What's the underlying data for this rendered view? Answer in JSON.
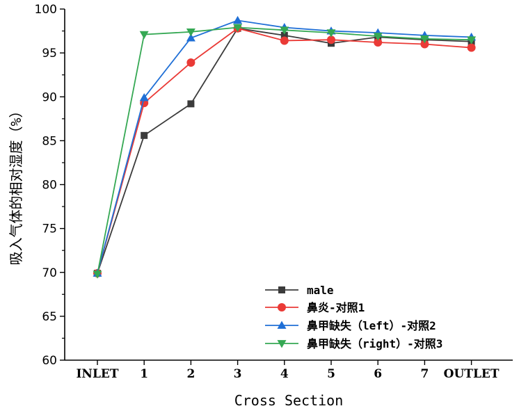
{
  "chart_data": {
    "type": "line",
    "categories": [
      "INLET",
      "1",
      "2",
      "3",
      "4",
      "5",
      "6",
      "7",
      "OUTLET"
    ],
    "xlabel": "Cross Section",
    "ylabel": "吸入气体的相对湿度（%）",
    "ylim": [
      60,
      100
    ],
    "yticks": [
      60,
      65,
      70,
      75,
      80,
      85,
      90,
      95,
      100
    ],
    "grid": false,
    "legend_position": "bottom-right",
    "series": [
      {
        "name": "male",
        "color": "#3b3b3b",
        "marker": "square",
        "values": [
          69.9,
          85.6,
          89.2,
          97.8,
          97.0,
          96.1,
          96.8,
          96.5,
          96.3
        ]
      },
      {
        "name": "鼻炎-对照1",
        "color": "#ea3a36",
        "marker": "circle",
        "values": [
          69.9,
          89.3,
          93.9,
          97.8,
          96.4,
          96.5,
          96.2,
          96.0,
          95.6
        ]
      },
      {
        "name": "鼻甲缺失（left）-对照2",
        "color": "#1f6fd6",
        "marker": "triangle-up",
        "values": [
          69.9,
          89.9,
          96.7,
          98.7,
          97.9,
          97.5,
          97.3,
          97.0,
          96.8
        ]
      },
      {
        "name": "鼻甲缺失（right）-对照3",
        "color": "#35a853",
        "marker": "triangle-down",
        "values": [
          69.8,
          97.1,
          97.4,
          97.9,
          97.6,
          97.3,
          96.9,
          96.6,
          96.5
        ]
      }
    ]
  }
}
